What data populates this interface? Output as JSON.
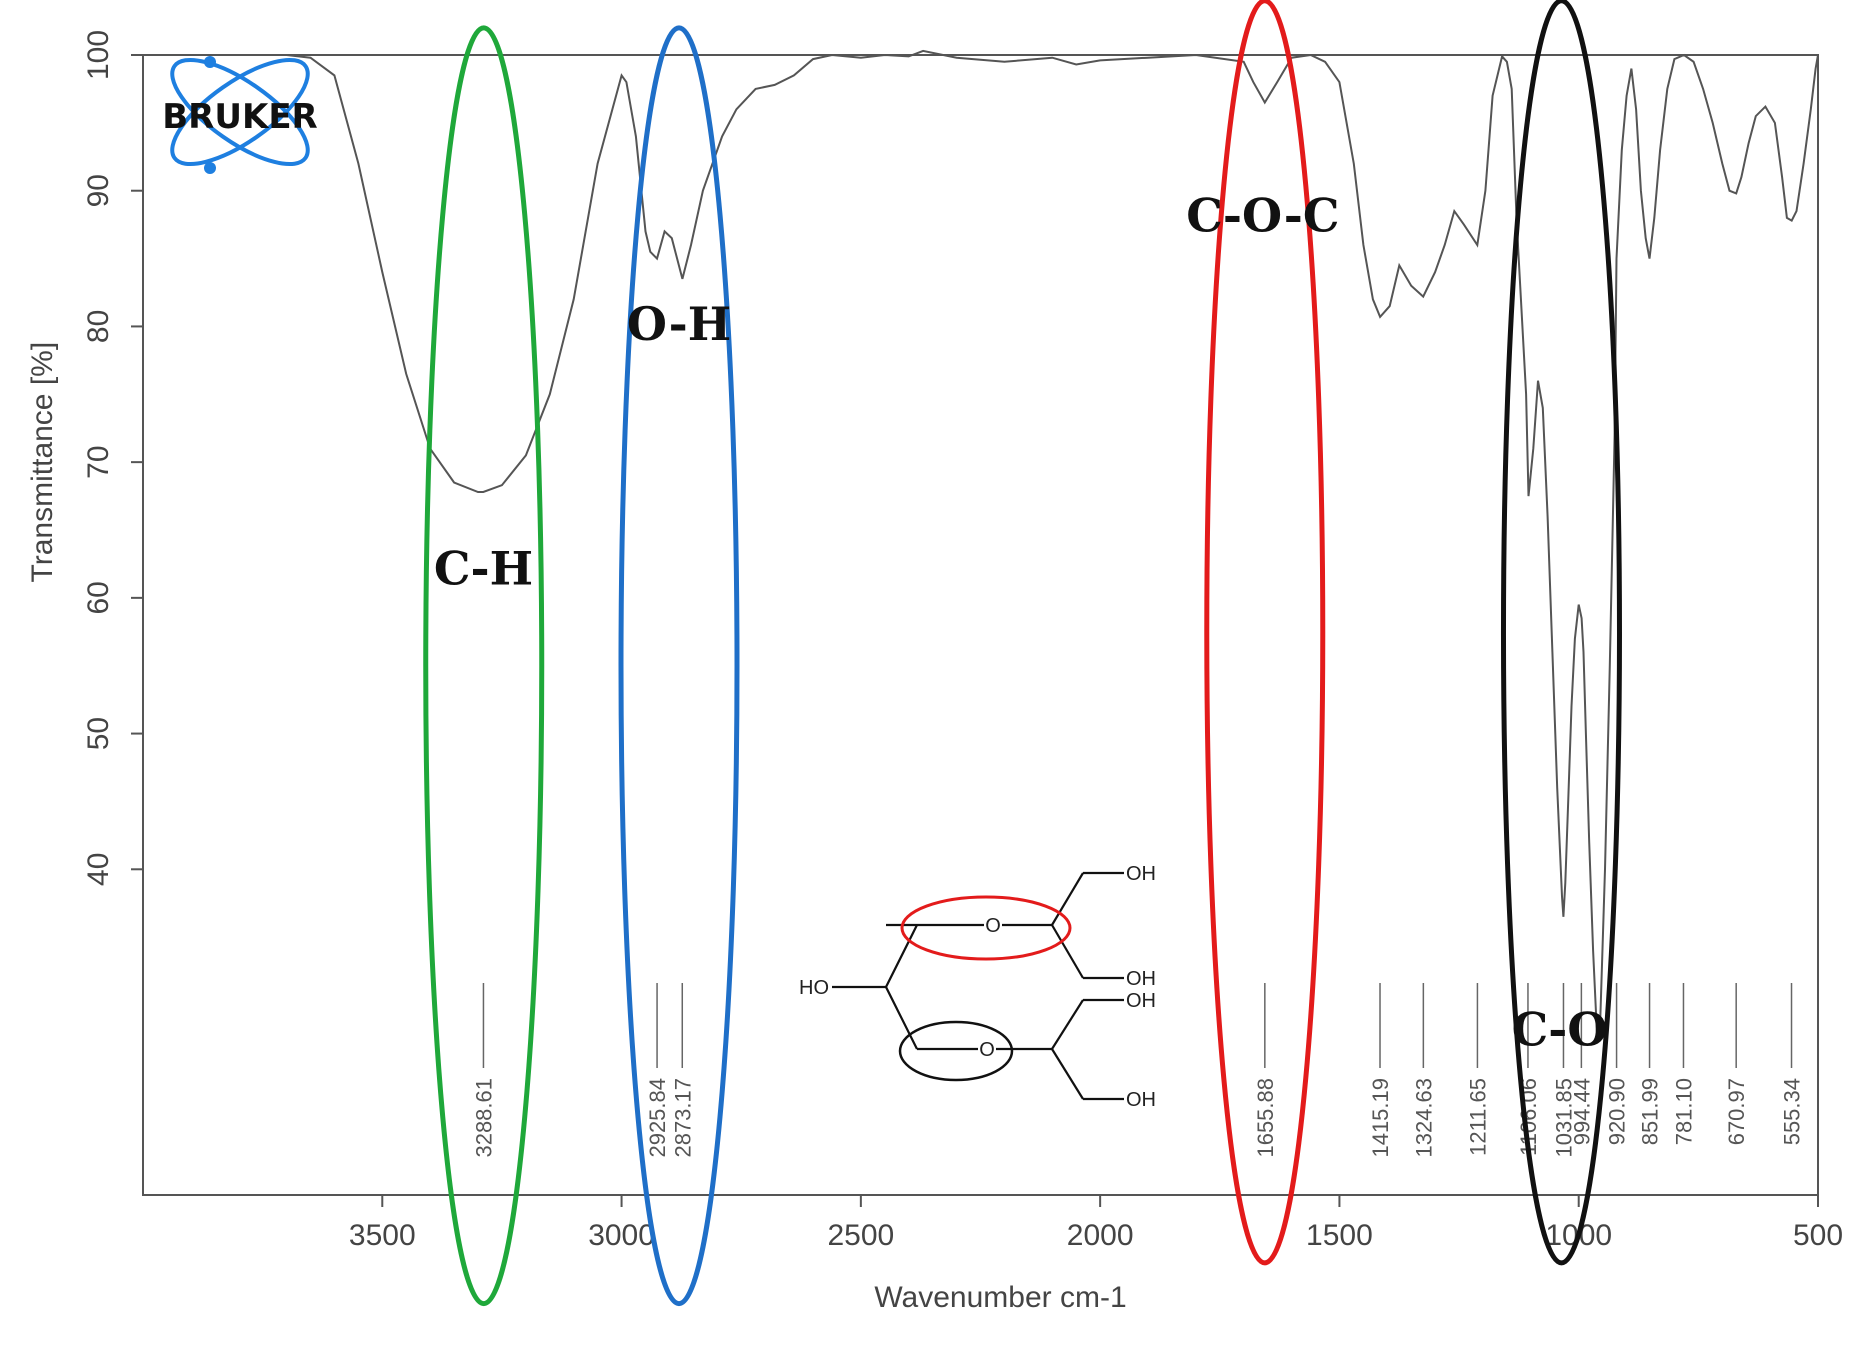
{
  "chart_data": {
    "type": "line",
    "xlabel": "Wavenumber cm-1",
    "ylabel": "Transmittance [%]",
    "xlim": [
      4000,
      500
    ],
    "ylim": [
      16,
      100
    ],
    "x_ticks": [
      3500,
      3000,
      2500,
      2000,
      1500,
      1000,
      500
    ],
    "y_ticks": [
      40,
      50,
      60,
      70,
      80,
      90,
      100
    ],
    "grid": false,
    "series": [
      {
        "x": [
          4000,
          3850,
          3700,
          3650,
          3600,
          3550,
          3500,
          3450,
          3400,
          3350,
          3300,
          3289,
          3250,
          3200,
          3150,
          3100,
          3050,
          3000,
          2990,
          2970,
          2950,
          2940,
          2926,
          2910,
          2895,
          2873,
          2855,
          2830,
          2790,
          2760,
          2720,
          2680,
          2640,
          2600,
          2560,
          2500,
          2450,
          2400,
          2370,
          2300,
          2200,
          2100,
          2050,
          2000,
          1900,
          1800,
          1700,
          1680,
          1656,
          1630,
          1600,
          1560,
          1530,
          1500,
          1470,
          1450,
          1430,
          1415,
          1395,
          1375,
          1350,
          1325,
          1300,
          1280,
          1260,
          1240,
          1212,
          1195,
          1180,
          1160,
          1150,
          1140,
          1130,
          1110,
          1105,
          1095,
          1085,
          1075,
          1065,
          1055,
          1045,
          1035,
          1032,
          1028,
          1022,
          1015,
          1008,
          1000,
          994,
          990,
          985,
          978,
          970,
          962,
          955,
          945,
          935,
          925,
          921,
          910,
          900,
          890,
          880,
          870,
          860,
          852,
          842,
          830,
          815,
          800,
          780,
          760,
          740,
          720,
          700,
          685,
          671,
          660,
          645,
          630,
          610,
          590,
          575,
          565,
          555,
          545,
          530,
          515,
          505,
          500
        ],
        "y": [
          100,
          100,
          100,
          99.8,
          98.5,
          92,
          84,
          76.5,
          71,
          68.5,
          67.8,
          67.8,
          68.3,
          70.5,
          75,
          82,
          92,
          98.5,
          98,
          94,
          87,
          85.5,
          85,
          87,
          86.5,
          83.5,
          86,
          90,
          94,
          96,
          97.5,
          97.8,
          98.5,
          99.7,
          100,
          99.8,
          100,
          99.9,
          100.3,
          99.8,
          99.5,
          99.8,
          99.3,
          99.6,
          99.8,
          100,
          99.5,
          98,
          96.5,
          98,
          99.8,
          100,
          99.5,
          98,
          92,
          86,
          82,
          80.7,
          81.5,
          84.5,
          83,
          82.2,
          84,
          86,
          88.5,
          87.5,
          86,
          90,
          97,
          99.9,
          99.5,
          97.5,
          88,
          75,
          67.5,
          71,
          76,
          74,
          66,
          56,
          46,
          38,
          36.5,
          39,
          45,
          52,
          57,
          59.5,
          58.5,
          56,
          50,
          42,
          34,
          28,
          29,
          40,
          55,
          72,
          85,
          93,
          97,
          99,
          96,
          90,
          86.5,
          85,
          88,
          93,
          97.5,
          99.7,
          100,
          99.5,
          97.5,
          95,
          92,
          90,
          89.8,
          91,
          93.5,
          95.5,
          96.2,
          95,
          91,
          88,
          87.8,
          88.5,
          92,
          96,
          99,
          100
        ]
      }
    ],
    "peak_labels": [
      "3288.61",
      "2925.84",
      "2873.17",
      "1655.88",
      "1415.19",
      "1324.63",
      "1211.65",
      "1106.06",
      "1031.85",
      "994.44",
      "920.90",
      "851.99",
      "781.10",
      "670.97",
      "555.34"
    ],
    "peak_positions": [
      3288.61,
      2925.84,
      2873.17,
      1655.88,
      1415.19,
      1324.63,
      1211.65,
      1106.06,
      1031.85,
      994.44,
      920.9,
      851.99,
      781.1,
      670.97,
      555.34
    ],
    "annotations": [
      {
        "text": "C-H",
        "x": 3288.61,
        "y": 61,
        "ellipse_color": "#1fa83a",
        "ellipse_x": 3288,
        "ellipse_y_range": [
          8,
          102
        ]
      },
      {
        "text": "O-H",
        "x": 2880,
        "y": 79,
        "ellipse_color": "#1f6fc8",
        "ellipse_x": 2880,
        "ellipse_y_range": [
          8,
          102
        ]
      },
      {
        "text": "C-O-C",
        "x": 1660,
        "y": 87,
        "ellipse_color": "#e31b1b",
        "ellipse_x": 1656,
        "ellipse_y_range": [
          11,
          104
        ]
      },
      {
        "text": "C-O",
        "x": 1040,
        "y": 27,
        "ellipse_color": "#111111",
        "ellipse_x": 1036,
        "ellipse_y_range": [
          11,
          104
        ]
      }
    ],
    "structure_labels": {
      "o1": "O",
      "o2": "O",
      "oh1": "OH",
      "oh2": "OH",
      "oh3": "OH",
      "oh4": "OH",
      "ho": "HO"
    },
    "structure_ellipse_colors": {
      "top_ether": "#e31b1b",
      "bottom_ether": "#111111"
    },
    "logo_text": "BRUKER",
    "colors": {
      "spectrum": "#555555",
      "axis": "#555555",
      "logo": "#1e7fe0"
    }
  }
}
